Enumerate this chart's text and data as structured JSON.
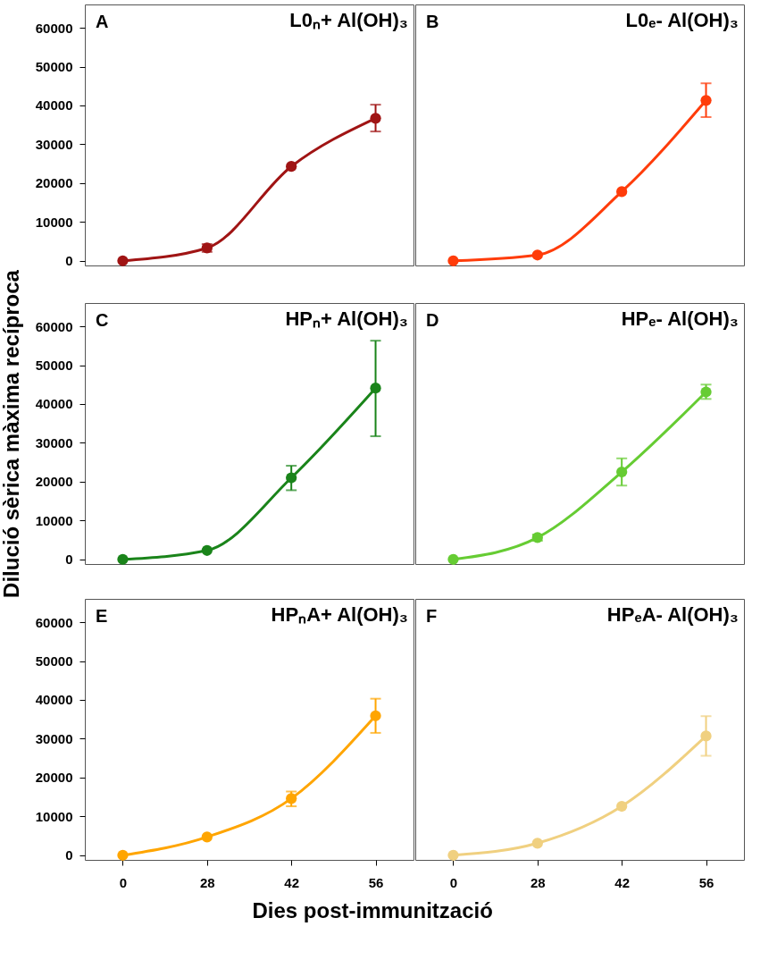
{
  "chart_data": [
    {
      "type": "line",
      "title": "L0ₙ+ Al(OH)₃",
      "annotations": [
        "A"
      ],
      "categories": [
        "0",
        "28",
        "42",
        "56"
      ],
      "series": [
        {
          "color": "#a01414",
          "values": [
            0,
            3300,
            24300,
            36700
          ],
          "errors": [
            null,
            1000,
            null,
            [
              33300,
              40200
            ]
          ]
        }
      ],
      "ylim": [
        -1200,
        66000
      ],
      "yticks": [
        0,
        10000,
        20000,
        30000,
        40000,
        50000,
        60000
      ],
      "tick_labels": "y",
      "marker": "circle",
      "grid": false
    },
    {
      "type": "line",
      "title": "L0ₑ- Al(OH)₃",
      "annotations": [
        "B"
      ],
      "categories": [
        "0",
        "28",
        "42",
        "56"
      ],
      "series": [
        {
          "color": "#ff3c0a",
          "values": [
            0,
            1500,
            17800,
            41300
          ],
          "errors": [
            null,
            null,
            null,
            [
              37000,
              45700
            ]
          ]
        }
      ],
      "ylim": [
        -1200,
        66000
      ],
      "yticks": [
        0,
        10000,
        20000,
        30000,
        40000,
        50000,
        60000
      ],
      "tick_labels": false,
      "marker": "circle",
      "grid": false
    },
    {
      "type": "line",
      "title": "HPₙ+ Al(OH)₃",
      "annotations": [
        "C"
      ],
      "ylabel": "Dilució sèrica màxima recíproca",
      "categories": [
        "0",
        "28",
        "42",
        "56"
      ],
      "series": [
        {
          "color": "#1a841a",
          "values": [
            0,
            2300,
            21000,
            44100
          ],
          "errors": [
            null,
            null,
            [
              17800,
              24100
            ],
            [
              31700,
              56300
            ]
          ]
        }
      ],
      "ylim": [
        -1200,
        66000
      ],
      "yticks": [
        0,
        10000,
        20000,
        30000,
        40000,
        50000,
        60000
      ],
      "tick_labels": "y",
      "marker": "circle",
      "grid": false
    },
    {
      "type": "line",
      "title": "HPₑ- Al(OH)₃",
      "annotations": [
        "D"
      ],
      "categories": [
        "0",
        "28",
        "42",
        "56"
      ],
      "series": [
        {
          "color": "#66cc33",
          "values": [
            0,
            5600,
            22500,
            43100
          ],
          "errors": [
            null,
            800,
            [
              19000,
              26000
            ],
            [
              41300,
              45000
            ]
          ]
        }
      ],
      "ylim": [
        -1200,
        66000
      ],
      "yticks": [
        0,
        10000,
        20000,
        30000,
        40000,
        50000,
        60000
      ],
      "tick_labels": false,
      "marker": "circle",
      "grid": false
    },
    {
      "type": "line",
      "title": "HPₙA+ Al(OH)₃",
      "annotations": [
        "E"
      ],
      "xlabel": "Dies post-immunització",
      "categories": [
        "0",
        "28",
        "42",
        "56"
      ],
      "series": [
        {
          "color": "#ffa500",
          "values": [
            0,
            4700,
            14600,
            35900
          ],
          "errors": [
            null,
            null,
            [
              12600,
              16400
            ],
            [
              31500,
              40300
            ]
          ]
        }
      ],
      "ylim": [
        -1200,
        66000
      ],
      "yticks": [
        0,
        10000,
        20000,
        30000,
        40000,
        50000,
        60000
      ],
      "marker": "circle",
      "grid": false
    },
    {
      "type": "line",
      "title": "HPₑA- Al(OH)₃",
      "annotations": [
        "F"
      ],
      "categories": [
        "0",
        "28",
        "42",
        "56"
      ],
      "series": [
        {
          "color": "#f0d080",
          "values": [
            0,
            3100,
            12600,
            30700
          ],
          "errors": [
            null,
            null,
            null,
            [
              25600,
              35800
            ]
          ]
        }
      ],
      "ylim": [
        -1200,
        66000
      ],
      "yticks": [
        0,
        10000,
        20000,
        30000,
        40000,
        50000,
        60000
      ],
      "tick_labels": "x",
      "marker": "circle",
      "grid": false
    }
  ]
}
